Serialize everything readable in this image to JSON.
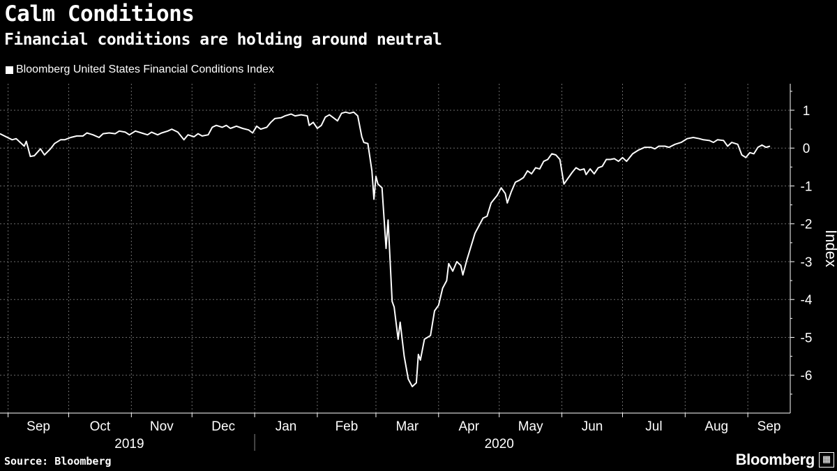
{
  "header": {
    "title": "Calm Conditions",
    "subtitle": "Financial conditions are holding around neutral"
  },
  "legend": {
    "label": "Bloomberg United States Financial Conditions Index"
  },
  "footer": {
    "source": "Source: Bloomberg",
    "brand": "Bloomberg"
  },
  "colors": {
    "background": "#000000",
    "line": "#ffffff",
    "grid": "#6e6e6e"
  },
  "icons": {
    "brand_icon": "chart-bars-icon"
  },
  "chart_data": {
    "type": "line",
    "title": "Calm Conditions",
    "subtitle": "Financial conditions are holding around neutral",
    "ylabel": "Index",
    "ylim": [
      -7.0,
      1.7
    ],
    "yticks": [
      1,
      0,
      -1,
      -2,
      -3,
      -4,
      -5,
      -6
    ],
    "ytick_labels": [
      "1",
      "0",
      "-1",
      "-2",
      "-3",
      "-4",
      "-5",
      "-6"
    ],
    "xlim": [
      "2019-08-28",
      "2020-09-22"
    ],
    "x_months": [
      {
        "label": "Sep",
        "date": "2019-09-01"
      },
      {
        "label": "Oct",
        "date": "2019-10-01"
      },
      {
        "label": "Nov",
        "date": "2019-11-01"
      },
      {
        "label": "Dec",
        "date": "2019-12-01"
      },
      {
        "label": "Jan",
        "date": "2020-01-01"
      },
      {
        "label": "Feb",
        "date": "2020-02-01"
      },
      {
        "label": "Mar",
        "date": "2020-03-01"
      },
      {
        "label": "Apr",
        "date": "2020-04-01"
      },
      {
        "label": "May",
        "date": "2020-05-01"
      },
      {
        "label": "Jun",
        "date": "2020-06-01"
      },
      {
        "label": "Jul",
        "date": "2020-07-01"
      },
      {
        "label": "Aug",
        "date": "2020-08-01"
      },
      {
        "label": "Sep",
        "date": "2020-09-01"
      }
    ],
    "x_years": [
      {
        "label": "2019",
        "date": "2019-10-31"
      },
      {
        "label": "2020",
        "date": "2020-05-01"
      }
    ],
    "year_separator": "2020-01-01",
    "grid": true,
    "legend_position": "top-left",
    "series": [
      {
        "name": "Bloomberg United States Financial Conditions Index",
        "points": [
          [
            "2019-08-28",
            0.38
          ],
          [
            "2019-08-31",
            0.3
          ],
          [
            "2019-09-03",
            0.22
          ],
          [
            "2019-09-05",
            0.25
          ],
          [
            "2019-09-07",
            0.15
          ],
          [
            "2019-09-09",
            0.05
          ],
          [
            "2019-09-10",
            0.18
          ],
          [
            "2019-09-12",
            -0.22
          ],
          [
            "2019-09-14",
            -0.2
          ],
          [
            "2019-09-17",
            -0.02
          ],
          [
            "2019-09-19",
            -0.18
          ],
          [
            "2019-09-22",
            -0.02
          ],
          [
            "2019-09-24",
            0.12
          ],
          [
            "2019-09-27",
            0.22
          ],
          [
            "2019-09-29",
            0.22
          ],
          [
            "2019-10-02",
            0.28
          ],
          [
            "2019-10-05",
            0.32
          ],
          [
            "2019-10-08",
            0.32
          ],
          [
            "2019-10-10",
            0.4
          ],
          [
            "2019-10-13",
            0.35
          ],
          [
            "2019-10-16",
            0.28
          ],
          [
            "2019-10-18",
            0.38
          ],
          [
            "2019-10-21",
            0.4
          ],
          [
            "2019-10-24",
            0.38
          ],
          [
            "2019-10-26",
            0.45
          ],
          [
            "2019-10-29",
            0.42
          ],
          [
            "2019-10-31",
            0.35
          ],
          [
            "2019-11-03",
            0.45
          ],
          [
            "2019-11-06",
            0.4
          ],
          [
            "2019-11-09",
            0.35
          ],
          [
            "2019-11-11",
            0.42
          ],
          [
            "2019-11-14",
            0.35
          ],
          [
            "2019-11-16",
            0.4
          ],
          [
            "2019-11-19",
            0.45
          ],
          [
            "2019-11-21",
            0.5
          ],
          [
            "2019-11-24",
            0.42
          ],
          [
            "2019-11-27",
            0.22
          ],
          [
            "2019-11-29",
            0.35
          ],
          [
            "2019-12-02",
            0.3
          ],
          [
            "2019-12-04",
            0.38
          ],
          [
            "2019-12-06",
            0.32
          ],
          [
            "2019-12-09",
            0.35
          ],
          [
            "2019-12-11",
            0.55
          ],
          [
            "2019-12-13",
            0.6
          ],
          [
            "2019-12-16",
            0.55
          ],
          [
            "2019-12-18",
            0.6
          ],
          [
            "2019-12-20",
            0.52
          ],
          [
            "2019-12-23",
            0.58
          ],
          [
            "2019-12-26",
            0.52
          ],
          [
            "2019-12-29",
            0.48
          ],
          [
            "2019-12-31",
            0.4
          ],
          [
            "2020-01-02",
            0.58
          ],
          [
            "2020-01-04",
            0.5
          ],
          [
            "2020-01-07",
            0.55
          ],
          [
            "2020-01-09",
            0.68
          ],
          [
            "2020-01-11",
            0.78
          ],
          [
            "2020-01-14",
            0.8
          ],
          [
            "2020-01-16",
            0.85
          ],
          [
            "2020-01-19",
            0.9
          ],
          [
            "2020-01-21",
            0.85
          ],
          [
            "2020-01-24",
            0.88
          ],
          [
            "2020-01-27",
            0.85
          ],
          [
            "2020-01-28",
            0.6
          ],
          [
            "2020-01-30",
            0.68
          ],
          [
            "2020-02-01",
            0.52
          ],
          [
            "2020-02-03",
            0.6
          ],
          [
            "2020-02-05",
            0.82
          ],
          [
            "2020-02-07",
            0.88
          ],
          [
            "2020-02-09",
            0.8
          ],
          [
            "2020-02-11",
            0.72
          ],
          [
            "2020-02-13",
            0.92
          ],
          [
            "2020-02-15",
            0.95
          ],
          [
            "2020-02-17",
            0.92
          ],
          [
            "2020-02-19",
            0.95
          ],
          [
            "2020-02-21",
            0.85
          ],
          [
            "2020-02-23",
            0.3
          ],
          [
            "2020-02-24",
            0.15
          ],
          [
            "2020-02-26",
            0.12
          ],
          [
            "2020-02-28",
            -0.6
          ],
          [
            "2020-02-29",
            -1.35
          ],
          [
            "2020-03-01",
            -0.75
          ],
          [
            "2020-03-02",
            -0.95
          ],
          [
            "2020-03-04",
            -1.05
          ],
          [
            "2020-03-06",
            -2.65
          ],
          [
            "2020-03-07",
            -1.9
          ],
          [
            "2020-03-09",
            -4.05
          ],
          [
            "2020-03-10",
            -4.2
          ],
          [
            "2020-03-12",
            -5.05
          ],
          [
            "2020-03-13",
            -4.6
          ],
          [
            "2020-03-15",
            -5.5
          ],
          [
            "2020-03-17",
            -6.1
          ],
          [
            "2020-03-19",
            -6.3
          ],
          [
            "2020-03-21",
            -6.2
          ],
          [
            "2020-03-22",
            -5.45
          ],
          [
            "2020-03-23",
            -5.6
          ],
          [
            "2020-03-25",
            -5.05
          ],
          [
            "2020-03-28",
            -4.95
          ],
          [
            "2020-03-30",
            -4.3
          ],
          [
            "2020-04-01",
            -4.15
          ],
          [
            "2020-04-03",
            -3.7
          ],
          [
            "2020-04-05",
            -3.5
          ],
          [
            "2020-04-06",
            -3.05
          ],
          [
            "2020-04-08",
            -3.25
          ],
          [
            "2020-04-10",
            -3.0
          ],
          [
            "2020-04-12",
            -3.1
          ],
          [
            "2020-04-13",
            -3.35
          ],
          [
            "2020-04-15",
            -2.95
          ],
          [
            "2020-04-17",
            -2.6
          ],
          [
            "2020-04-19",
            -2.25
          ],
          [
            "2020-04-21",
            -2.05
          ],
          [
            "2020-04-23",
            -1.85
          ],
          [
            "2020-04-25",
            -1.8
          ],
          [
            "2020-04-27",
            -1.45
          ],
          [
            "2020-04-30",
            -1.25
          ],
          [
            "2020-05-02",
            -1.05
          ],
          [
            "2020-05-04",
            -1.2
          ],
          [
            "2020-05-05",
            -1.45
          ],
          [
            "2020-05-07",
            -1.15
          ],
          [
            "2020-05-09",
            -0.9
          ],
          [
            "2020-05-11",
            -0.85
          ],
          [
            "2020-05-13",
            -0.78
          ],
          [
            "2020-05-15",
            -0.6
          ],
          [
            "2020-05-17",
            -0.68
          ],
          [
            "2020-05-19",
            -0.52
          ],
          [
            "2020-05-21",
            -0.55
          ],
          [
            "2020-05-23",
            -0.35
          ],
          [
            "2020-05-25",
            -0.3
          ],
          [
            "2020-05-27",
            -0.15
          ],
          [
            "2020-05-29",
            -0.18
          ],
          [
            "2020-05-31",
            -0.3
          ],
          [
            "2020-06-02",
            -0.95
          ],
          [
            "2020-06-04",
            -0.8
          ],
          [
            "2020-06-06",
            -0.65
          ],
          [
            "2020-06-08",
            -0.52
          ],
          [
            "2020-06-10",
            -0.58
          ],
          [
            "2020-06-12",
            -0.55
          ],
          [
            "2020-06-13",
            -0.7
          ],
          [
            "2020-06-15",
            -0.55
          ],
          [
            "2020-06-17",
            -0.68
          ],
          [
            "2020-06-19",
            -0.52
          ],
          [
            "2020-06-21",
            -0.48
          ],
          [
            "2020-06-23",
            -0.3
          ],
          [
            "2020-06-25",
            -0.3
          ],
          [
            "2020-06-27",
            -0.28
          ],
          [
            "2020-06-29",
            -0.35
          ],
          [
            "2020-07-01",
            -0.25
          ],
          [
            "2020-07-03",
            -0.35
          ],
          [
            "2020-07-06",
            -0.15
          ],
          [
            "2020-07-09",
            -0.05
          ],
          [
            "2020-07-12",
            0.02
          ],
          [
            "2020-07-15",
            0.02
          ],
          [
            "2020-07-17",
            -0.02
          ],
          [
            "2020-07-19",
            0.05
          ],
          [
            "2020-07-22",
            0.05
          ],
          [
            "2020-07-24",
            0.02
          ],
          [
            "2020-07-27",
            0.1
          ],
          [
            "2020-07-30",
            0.15
          ],
          [
            "2020-08-02",
            0.25
          ],
          [
            "2020-08-05",
            0.28
          ],
          [
            "2020-08-08",
            0.25
          ],
          [
            "2020-08-10",
            0.22
          ],
          [
            "2020-08-13",
            0.2
          ],
          [
            "2020-08-15",
            0.15
          ],
          [
            "2020-08-17",
            0.22
          ],
          [
            "2020-08-20",
            0.2
          ],
          [
            "2020-08-22",
            0.05
          ],
          [
            "2020-08-24",
            0.15
          ],
          [
            "2020-08-27",
            0.1
          ],
          [
            "2020-08-29",
            -0.18
          ],
          [
            "2020-08-31",
            -0.25
          ],
          [
            "2020-09-02",
            -0.12
          ],
          [
            "2020-09-04",
            -0.15
          ],
          [
            "2020-09-06",
            0.02
          ],
          [
            "2020-09-08",
            0.08
          ],
          [
            "2020-09-10",
            0.02
          ],
          [
            "2020-09-12",
            0.05
          ]
        ]
      }
    ]
  }
}
